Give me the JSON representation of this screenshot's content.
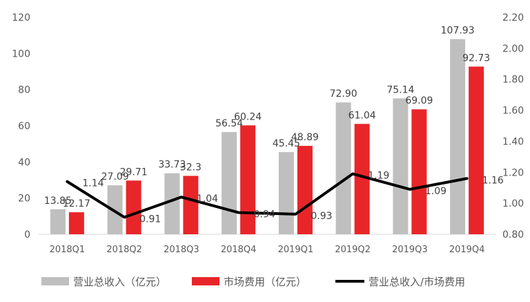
{
  "chart_data": {
    "type": "bar+line",
    "categories": [
      "2018Q1",
      "2018Q2",
      "2018Q3",
      "2018Q4",
      "2019Q1",
      "2019Q2",
      "2019Q3",
      "2019Q4"
    ],
    "series": [
      {
        "name": "营业总收入（亿元）",
        "type": "bar",
        "axis": "left",
        "color": "#bfbfbf",
        "values": [
          13.85,
          27.09,
          33.73,
          56.54,
          45.45,
          72.9,
          75.14,
          107.93
        ],
        "labels": [
          "13.85",
          "27.09",
          "33.73",
          "56.54",
          "45.45",
          "72.90",
          "75.14",
          "107.93"
        ]
      },
      {
        "name": "市场费用（亿元）",
        "type": "bar",
        "axis": "left",
        "color": "#e8262a",
        "values": [
          12.17,
          29.71,
          32.3,
          60.24,
          48.89,
          61.04,
          69.09,
          92.73
        ],
        "labels": [
          "12.17",
          "29.71",
          "32.3",
          "60.24",
          "48.89",
          "61.04",
          "69.09",
          "92.73"
        ]
      },
      {
        "name": "营业总收入/市场费用",
        "type": "line",
        "axis": "right",
        "color": "#000000",
        "values": [
          1.14,
          0.91,
          1.04,
          0.94,
          0.93,
          1.19,
          1.09,
          1.16
        ],
        "labels": [
          "1.14",
          "0.91",
          "1.04",
          "0.94",
          "0.93",
          "1.19",
          "1.09",
          "1.16"
        ]
      }
    ],
    "y_left": {
      "min": 0,
      "max": 120,
      "ticks": [
        "0",
        "20",
        "40",
        "60",
        "80",
        "100",
        "120"
      ]
    },
    "y_right": {
      "min": 0.8,
      "max": 2.2,
      "ticks": [
        "0.80",
        "1.00",
        "1.20",
        "1.40",
        "1.60",
        "1.80",
        "2.00",
        "2.20"
      ]
    },
    "grid": false,
    "legend_position": "bottom",
    "title": "",
    "xlabel": "",
    "ylabel": ""
  }
}
